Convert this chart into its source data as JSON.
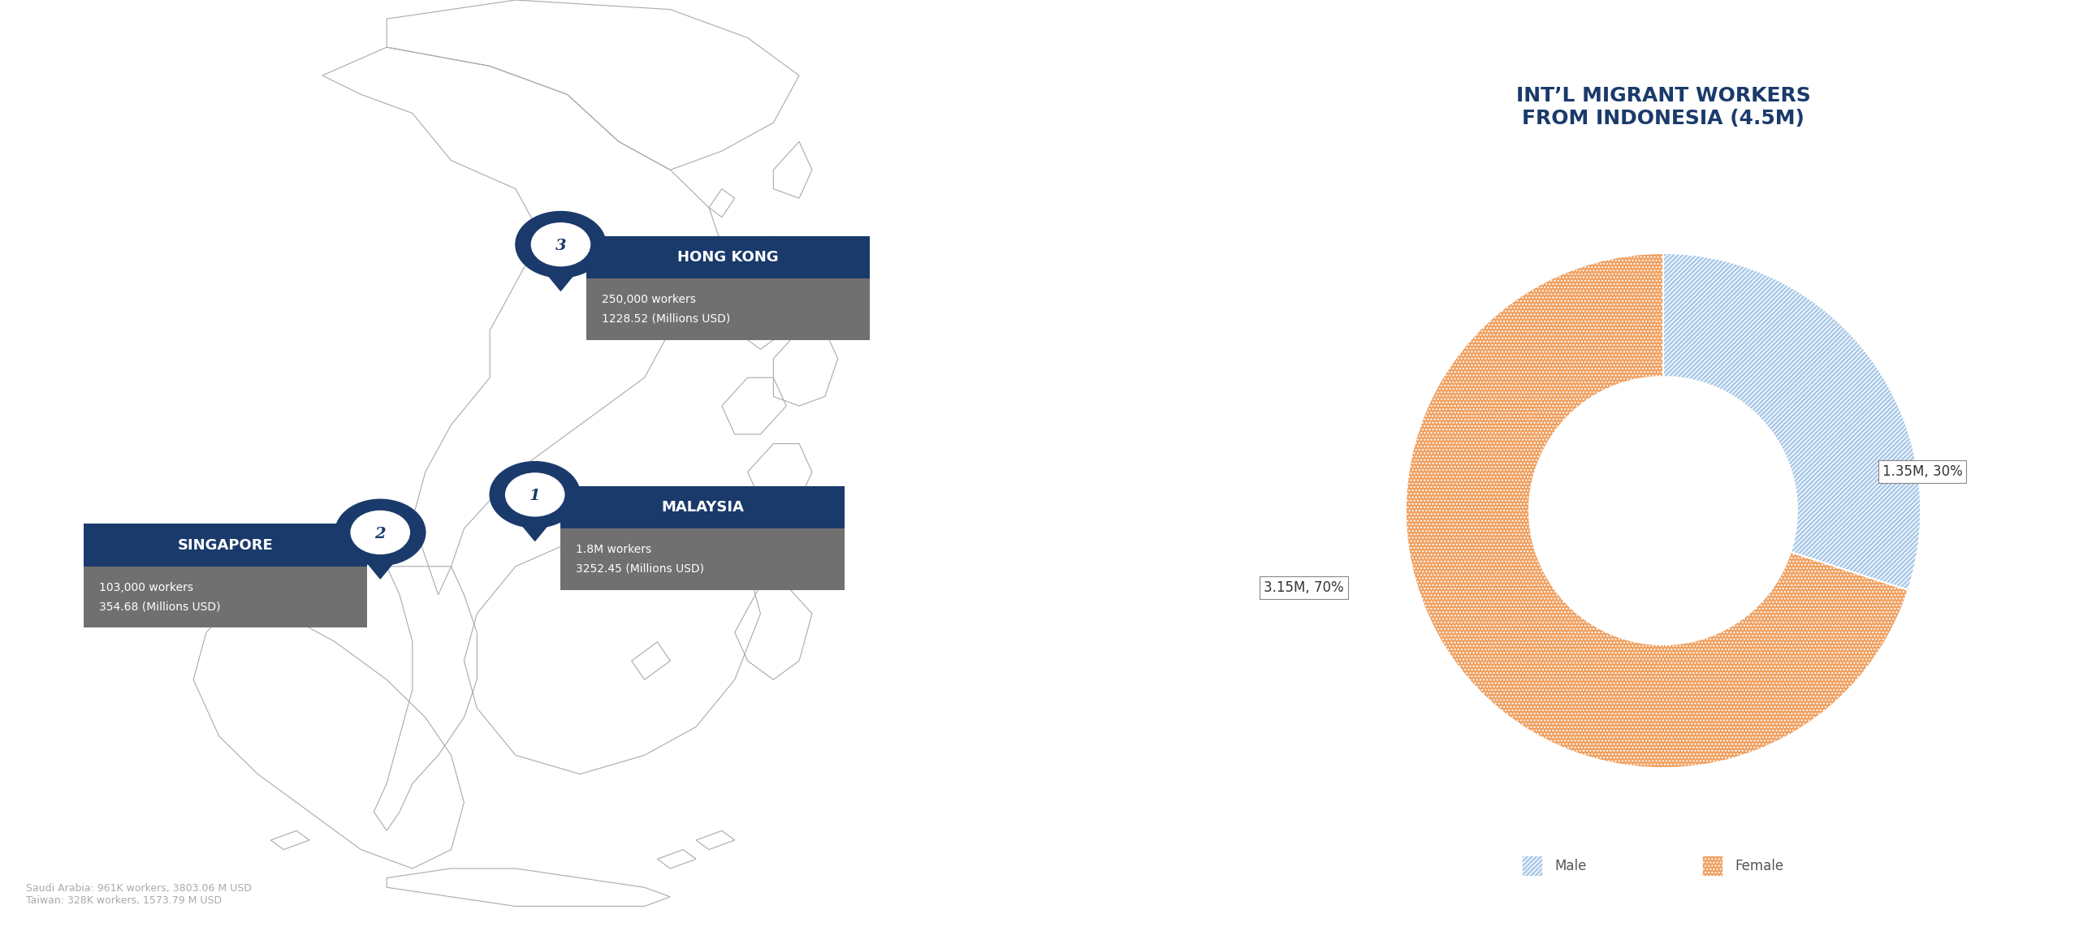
{
  "title": "INT’L MIGRANT WORKERS\nFROM INDONESIA (4.5M)",
  "pie_values": [
    30,
    70
  ],
  "pie_labels": [
    "1.35M, 30%",
    "3.15M, 70%"
  ],
  "pie_colors_base": [
    "#a8c8e8",
    "#f0b080"
  ],
  "pie_hatch": [
    "/////",
    "...."
  ],
  "legend_labels": [
    "Male",
    "Female"
  ],
  "footer_text": "Saudi Arabia: 961K workers, 3803.06 M USD\nTaiwan: 328K workers, 1573.79 M USD",
  "markers": [
    {
      "number": "1",
      "label": "MALAYSIA",
      "line1": "1.8M workers",
      "line2": "3252.45 (Millions USD)"
    },
    {
      "number": "2",
      "label": "SINGAPORE",
      "line1": "103,000 workers",
      "line2": "354.68 (Millions USD)"
    },
    {
      "number": "3",
      "label": "HONG KONG",
      "line1": "250,000 workers",
      "line2": "1228.52 (Millions USD)"
    }
  ],
  "navy_color": "#1a3a6b",
  "gray_color": "#707070",
  "label_bg_color": "#f5f5f5",
  "background_color": "#ffffff"
}
